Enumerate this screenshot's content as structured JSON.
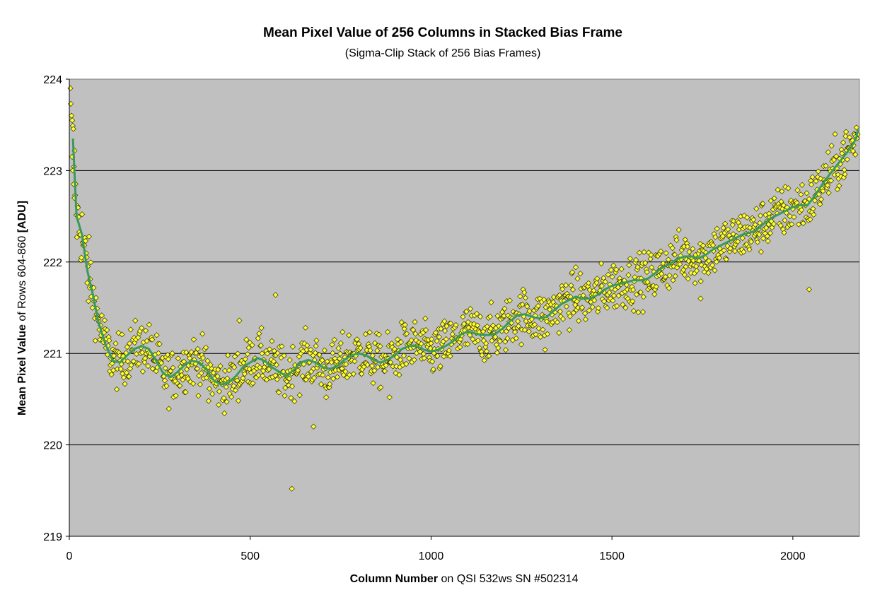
{
  "chart_data": {
    "type": "scatter",
    "title": "Mean Pixel Value of 256 Columns in Stacked Bias Frame",
    "subtitle": "(Sigma-Clip Stack of 256 Bias Frames)",
    "xlabel_bold": "Column Number",
    "xlabel_rest": " on QSI 532ws SN #502314",
    "ylabel_bold": "Mean Pixel Value",
    "ylabel_mid": " of Rows 604-860 ",
    "ylabel_bold2": "[ADU]",
    "xlim": [
      0,
      2184
    ],
    "ylim": [
      219,
      224
    ],
    "x_ticks": [
      "0",
      "500",
      "1000",
      "1500",
      "2000"
    ],
    "y_ticks": [
      "219",
      "220",
      "221",
      "222",
      "223",
      "224"
    ],
    "grid": "horizontal",
    "colors": {
      "plot_bg": "#c0c0c0",
      "marker_fill": "#ffff33",
      "marker_edge": "#333300",
      "trend": "#3a9a5a"
    },
    "trend_curve": [
      [
        10,
        223.35
      ],
      [
        20,
        222.5
      ],
      [
        35,
        222.3
      ],
      [
        50,
        221.9
      ],
      [
        65,
        221.65
      ],
      [
        80,
        221.35
      ],
      [
        100,
        221.1
      ],
      [
        120,
        220.92
      ],
      [
        140,
        220.9
      ],
      [
        160,
        220.98
      ],
      [
        180,
        221.05
      ],
      [
        200,
        221.08
      ],
      [
        220,
        221.05
      ],
      [
        240,
        220.92
      ],
      [
        260,
        220.78
      ],
      [
        280,
        220.74
      ],
      [
        300,
        220.8
      ],
      [
        320,
        220.88
      ],
      [
        340,
        220.92
      ],
      [
        360,
        220.9
      ],
      [
        380,
        220.82
      ],
      [
        400,
        220.7
      ],
      [
        420,
        220.66
      ],
      [
        440,
        220.68
      ],
      [
        460,
        220.75
      ],
      [
        480,
        220.85
      ],
      [
        500,
        220.9
      ],
      [
        520,
        220.95
      ],
      [
        540,
        220.92
      ],
      [
        560,
        220.85
      ],
      [
        580,
        220.8
      ],
      [
        600,
        220.75
      ],
      [
        620,
        220.82
      ],
      [
        640,
        220.9
      ],
      [
        660,
        220.93
      ],
      [
        680,
        220.9
      ],
      [
        700,
        220.85
      ],
      [
        720,
        220.83
      ],
      [
        740,
        220.86
      ],
      [
        760,
        220.93
      ],
      [
        780,
        220.98
      ],
      [
        800,
        221.0
      ],
      [
        820,
        220.98
      ],
      [
        840,
        220.93
      ],
      [
        860,
        220.9
      ],
      [
        880,
        220.93
      ],
      [
        900,
        220.98
      ],
      [
        920,
        221.05
      ],
      [
        940,
        221.08
      ],
      [
        960,
        221.08
      ],
      [
        980,
        221.04
      ],
      [
        1000,
        221.02
      ],
      [
        1020,
        221.04
      ],
      [
        1040,
        221.08
      ],
      [
        1060,
        221.13
      ],
      [
        1080,
        221.2
      ],
      [
        1100,
        221.24
      ],
      [
        1120,
        221.22
      ],
      [
        1140,
        221.2
      ],
      [
        1160,
        221.2
      ],
      [
        1180,
        221.22
      ],
      [
        1200,
        221.28
      ],
      [
        1220,
        221.36
      ],
      [
        1240,
        221.42
      ],
      [
        1260,
        221.43
      ],
      [
        1280,
        221.4
      ],
      [
        1300,
        221.38
      ],
      [
        1320,
        221.4
      ],
      [
        1340,
        221.47
      ],
      [
        1360,
        221.54
      ],
      [
        1380,
        221.58
      ],
      [
        1400,
        221.62
      ],
      [
        1420,
        221.6
      ],
      [
        1440,
        221.6
      ],
      [
        1460,
        221.64
      ],
      [
        1480,
        221.7
      ],
      [
        1500,
        221.74
      ],
      [
        1520,
        221.76
      ],
      [
        1540,
        221.78
      ],
      [
        1560,
        221.8
      ],
      [
        1580,
        221.8
      ],
      [
        1600,
        221.82
      ],
      [
        1620,
        221.88
      ],
      [
        1640,
        221.94
      ],
      [
        1660,
        221.98
      ],
      [
        1680,
        222.03
      ],
      [
        1700,
        222.06
      ],
      [
        1720,
        222.06
      ],
      [
        1740,
        222.04
      ],
      [
        1760,
        222.08
      ],
      [
        1780,
        222.14
      ],
      [
        1800,
        222.18
      ],
      [
        1820,
        222.22
      ],
      [
        1840,
        222.26
      ],
      [
        1860,
        222.3
      ],
      [
        1880,
        222.32
      ],
      [
        1900,
        222.35
      ],
      [
        1920,
        222.42
      ],
      [
        1940,
        222.48
      ],
      [
        1960,
        222.52
      ],
      [
        1980,
        222.56
      ],
      [
        2000,
        222.6
      ],
      [
        2020,
        222.62
      ],
      [
        2040,
        222.62
      ],
      [
        2060,
        222.72
      ],
      [
        2080,
        222.84
      ],
      [
        2100,
        222.95
      ],
      [
        2120,
        223.05
      ],
      [
        2140,
        223.15
      ],
      [
        2160,
        223.25
      ],
      [
        2175,
        223.35
      ],
      [
        2180,
        223.45
      ]
    ],
    "scatter_noise": 0.14,
    "outliers": [
      [
        3,
        223.9
      ],
      [
        4,
        223.73
      ],
      [
        6,
        223.6
      ],
      [
        8,
        223.15
      ],
      [
        10,
        223.0
      ],
      [
        12,
        222.85
      ],
      [
        14,
        222.7
      ],
      [
        570,
        221.64
      ],
      [
        470,
        221.36
      ],
      [
        675,
        220.2
      ],
      [
        615,
        219.52
      ],
      [
        1745,
        221.6
      ],
      [
        2045,
        221.7
      ],
      [
        385,
        220.48
      ],
      [
        885,
        220.52
      ],
      [
        710,
        220.52
      ],
      [
        1315,
        221.04
      ]
    ]
  }
}
